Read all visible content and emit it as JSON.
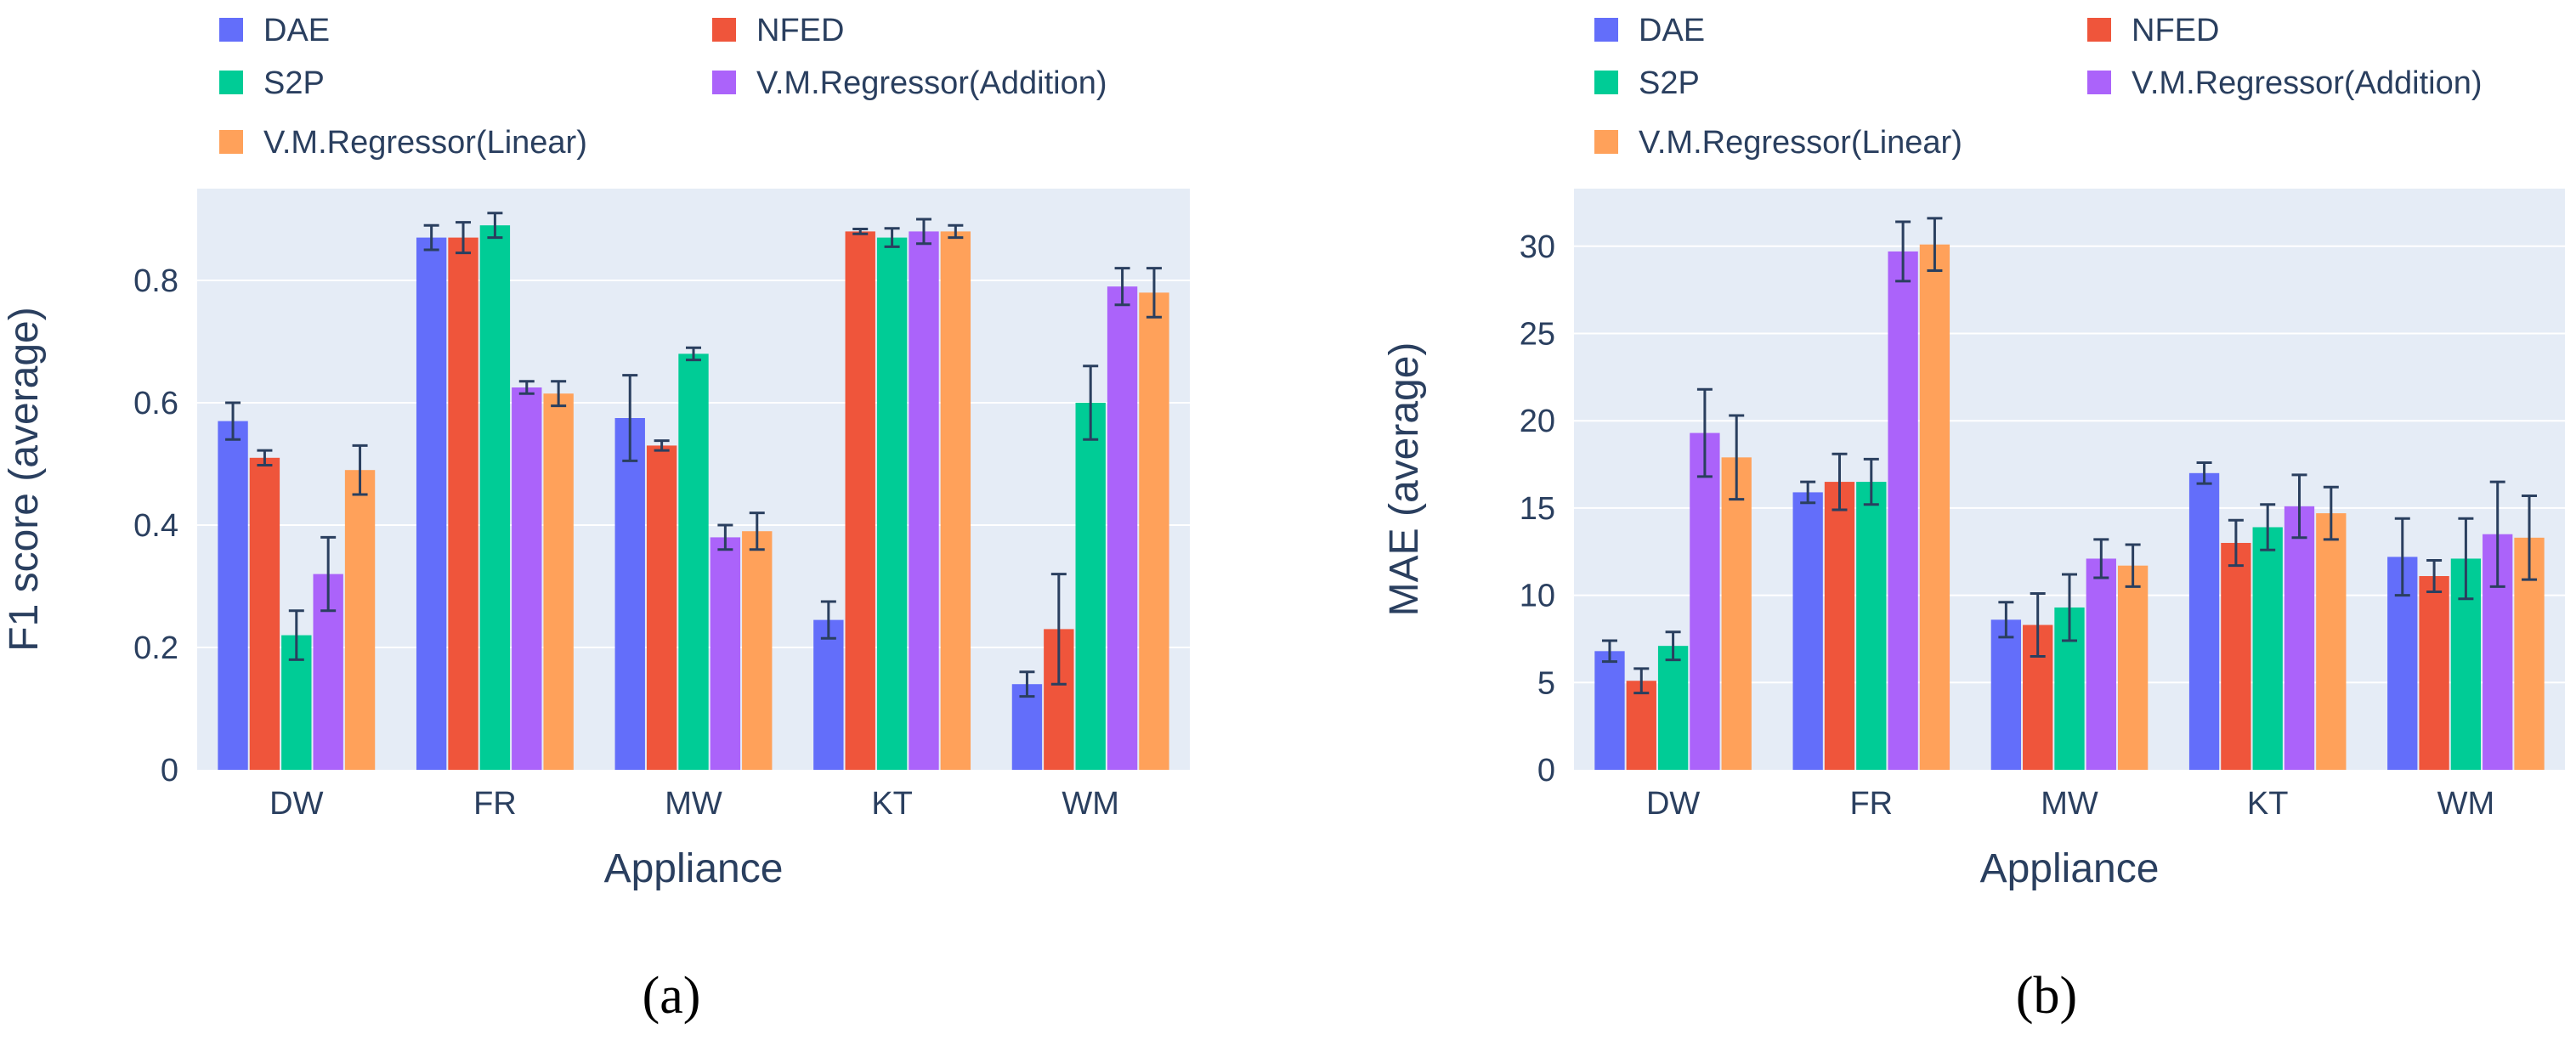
{
  "series_colors": {
    "DAE": "#636efa",
    "NFED": "#ef553b",
    "S2P": "#00cc96",
    "V.M.Regressor(Addition)": "#ab63fa",
    "V.M.Regressor(Linear)": "#ffa15a"
  },
  "chart_data": [
    {
      "type": "bar",
      "title": "",
      "xlabel": "Appliance",
      "ylabel": "F1 score (average)",
      "caption": "(a)",
      "categories": [
        "DW",
        "FR",
        "MW",
        "KT",
        "WM"
      ],
      "ylim": [
        0,
        0.95
      ],
      "yticks": [
        0,
        0.2,
        0.4,
        0.6,
        0.8
      ],
      "ytick_labels": [
        "0",
        "0.2",
        "0.4",
        "0.6",
        "0.8"
      ],
      "grid": true,
      "legend": [
        "DAE",
        "NFED",
        "S2P",
        "V.M.Regressor(Addition)",
        "V.M.Regressor(Linear)"
      ],
      "series": [
        {
          "name": "DAE",
          "values": [
            0.57,
            0.87,
            0.575,
            0.245,
            0.14
          ],
          "errors": [
            0.03,
            0.02,
            0.07,
            0.03,
            0.02
          ]
        },
        {
          "name": "NFED",
          "values": [
            0.51,
            0.87,
            0.53,
            0.88,
            0.23
          ],
          "errors": [
            0.012,
            0.025,
            0.008,
            0.004,
            0.09
          ]
        },
        {
          "name": "S2P",
          "values": [
            0.22,
            0.89,
            0.68,
            0.87,
            0.6
          ],
          "errors": [
            0.04,
            0.02,
            0.01,
            0.015,
            0.06
          ]
        },
        {
          "name": "V.M.Regressor(Addition)",
          "values": [
            0.32,
            0.625,
            0.38,
            0.88,
            0.79
          ],
          "errors": [
            0.06,
            0.01,
            0.02,
            0.02,
            0.03
          ]
        },
        {
          "name": "V.M.Regressor(Linear)",
          "values": [
            0.49,
            0.615,
            0.39,
            0.88,
            0.78
          ],
          "errors": [
            0.04,
            0.02,
            0.03,
            0.01,
            0.04
          ]
        }
      ]
    },
    {
      "type": "bar",
      "title": "",
      "xlabel": "Appliance",
      "ylabel": "MAE (average)",
      "caption": "(b)",
      "categories": [
        "DW",
        "FR",
        "MW",
        "KT",
        "WM"
      ],
      "ylim": [
        0,
        33.3
      ],
      "yticks": [
        0,
        5,
        10,
        15,
        20,
        25,
        30
      ],
      "ytick_labels": [
        "0",
        "5",
        "10",
        "15",
        "20",
        "25",
        "30"
      ],
      "grid": true,
      "legend": [
        "DAE",
        "NFED",
        "S2P",
        "V.M.Regressor(Addition)",
        "V.M.Regressor(Linear)"
      ],
      "series": [
        {
          "name": "DAE",
          "values": [
            6.8,
            15.9,
            8.6,
            17.0,
            12.2
          ],
          "errors": [
            0.6,
            0.6,
            1.0,
            0.6,
            2.2
          ]
        },
        {
          "name": "NFED",
          "values": [
            5.1,
            16.5,
            8.3,
            13.0,
            11.1
          ],
          "errors": [
            0.7,
            1.6,
            1.8,
            1.3,
            0.9
          ]
        },
        {
          "name": "S2P",
          "values": [
            7.1,
            16.5,
            9.3,
            13.9,
            12.1
          ],
          "errors": [
            0.8,
            1.3,
            1.9,
            1.3,
            2.3
          ]
        },
        {
          "name": "V.M.Regressor(Addition)",
          "values": [
            19.3,
            29.7,
            12.1,
            15.1,
            13.5
          ],
          "errors": [
            2.5,
            1.7,
            1.1,
            1.8,
            3.0
          ]
        },
        {
          "name": "V.M.Regressor(Linear)",
          "values": [
            17.9,
            30.1,
            11.7,
            14.7,
            13.3
          ],
          "errors": [
            2.4,
            1.5,
            1.2,
            1.5,
            2.4
          ]
        }
      ]
    }
  ]
}
